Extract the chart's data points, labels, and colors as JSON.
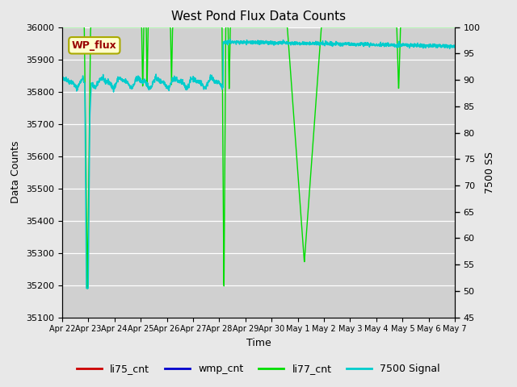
{
  "title": "West Pond Flux Data Counts",
  "xlabel": "Time",
  "ylabel_left": "Data Counts",
  "ylabel_right": "7500 SS",
  "ylim_left": [
    35100,
    36000
  ],
  "ylim_right": [
    45,
    100
  ],
  "yticks_left": [
    35100,
    35200,
    35300,
    35400,
    35500,
    35600,
    35700,
    35800,
    35900,
    36000
  ],
  "yticks_right": [
    45,
    50,
    55,
    60,
    65,
    70,
    75,
    80,
    85,
    90,
    95,
    100
  ],
  "xtick_labels": [
    "Apr 22",
    "Apr 23",
    "Apr 24",
    "Apr 25",
    "Apr 26",
    "Apr 27",
    "Apr 28",
    "Apr 29",
    "Apr 30",
    "May 1",
    "May 2",
    "May 3",
    "May 4",
    "May 5",
    "May 6",
    "May 7"
  ],
  "fig_bg_color": "#e8e8e8",
  "plot_bg_color": "#d0d0d0",
  "wp_flux_label_color": "#990000",
  "wp_flux_bg": "#ffffcc",
  "wp_flux_border": "#aaaa00",
  "li77_color": "#00dd00",
  "cyan_color": "#00cccc",
  "li75_color": "#cc0000",
  "wmp_color": "#0000cc",
  "legend_colors": [
    "#cc0000",
    "#0000cc",
    "#00dd00",
    "#00cccc"
  ],
  "legend_labels": [
    "li75_cnt",
    "wmp_cnt",
    "li77_cnt",
    "7500 Signal"
  ]
}
